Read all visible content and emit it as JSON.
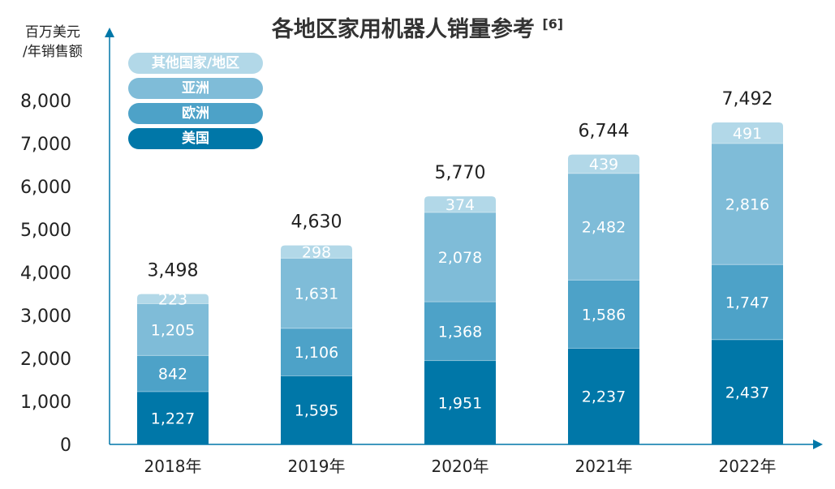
{
  "chart_data": {
    "type": "bar",
    "stacked": true,
    "title": "各地区家用机器人销量参考",
    "title_ref": "[6]",
    "ylabel": [
      "百万美元",
      "/年销售额"
    ],
    "xlabel": "",
    "ylim": [
      0,
      8000
    ],
    "yticks": [
      "0",
      "1,000",
      "2,000",
      "3,000",
      "4,000",
      "5,000",
      "6,000",
      "7,000",
      "8,000"
    ],
    "categories": [
      "2018年",
      "2019年",
      "2020年",
      "2021年",
      "2022年"
    ],
    "series": [
      {
        "name": "美国",
        "color": "#0077a8",
        "values": [
          1227,
          1595,
          1951,
          2237,
          2437
        ],
        "labels": [
          "1,227",
          "1,595",
          "1,951",
          "2,237",
          "2,437"
        ]
      },
      {
        "name": "欧洲",
        "color": "#4da2c8",
        "values": [
          842,
          1106,
          1368,
          1586,
          1747
        ],
        "labels": [
          "842",
          "1,106",
          "1,368",
          "1,586",
          "1,747"
        ]
      },
      {
        "name": "亚洲",
        "color": "#7fbcd8",
        "values": [
          1205,
          1631,
          2078,
          2482,
          2816
        ],
        "labels": [
          "1,205",
          "1,631",
          "2,078",
          "2,482",
          "2,816"
        ]
      },
      {
        "name": "其他国家/地区",
        "color": "#b2d8e8",
        "values": [
          223,
          298,
          374,
          439,
          491
        ],
        "labels": [
          "223",
          "298",
          "374",
          "439",
          "491"
        ]
      }
    ],
    "totals": [
      "3,498",
      "4,630",
      "5,770",
      "6,744",
      "7,492"
    ],
    "legend_position": "top-left",
    "grid": false
  }
}
